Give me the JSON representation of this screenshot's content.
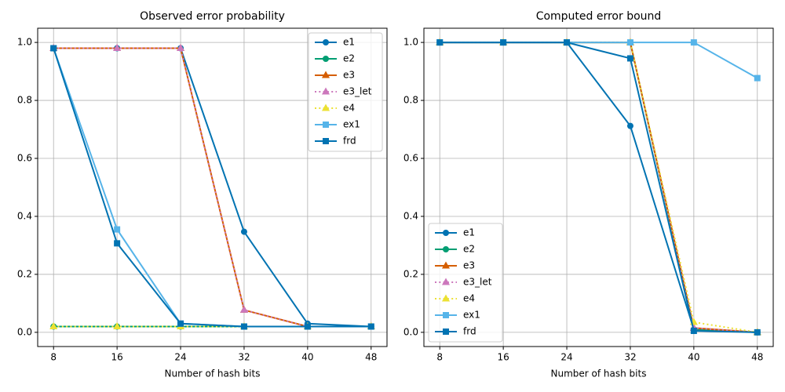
{
  "chart_data": [
    {
      "type": "line",
      "title": "Observed error probability",
      "x_label": "Number of hash bits",
      "x": [
        8,
        16,
        24,
        32,
        40,
        48
      ],
      "xlim": [
        6,
        50
      ],
      "xticks": [
        8,
        16,
        24,
        32,
        40,
        48
      ],
      "ylim": [
        -0.049,
        1.049
      ],
      "yticks": [
        {
          "value": 0,
          "label": "0.0"
        },
        {
          "value": 0.2,
          "label": "0.2"
        },
        {
          "value": 0.4,
          "label": "0.4"
        },
        {
          "value": 0.6,
          "label": "0.6"
        },
        {
          "value": 0.8,
          "label": "0.8"
        },
        {
          "value": 1.0,
          "label": "1.0"
        }
      ],
      "grid": true,
      "legend": "upper-right",
      "series": [
        {
          "name": "e1",
          "color": "#0173b2",
          "marker": "circle",
          "linestyle": "solid",
          "values": [
            0.98,
            0.98,
            0.98,
            0.347,
            0.03,
            0.02
          ]
        },
        {
          "name": "e2",
          "color": "#029e73",
          "marker": "circle",
          "linestyle": "solid",
          "values": [
            0.02,
            0.02,
            0.02,
            0.02,
            0.02,
            0.02
          ]
        },
        {
          "name": "e3",
          "color": "#d55e00",
          "marker": "triangle",
          "linestyle": "solid",
          "values": [
            0.98,
            0.98,
            0.98,
            0.077,
            0.02,
            0.02
          ]
        },
        {
          "name": "e3_let",
          "color": "#cc78bc",
          "marker": "triangle",
          "linestyle": "dotted",
          "values": [
            0.98,
            0.98,
            0.98,
            0.077,
            0.02,
            0.02
          ]
        },
        {
          "name": "e4",
          "color": "#ece133",
          "marker": "triangle",
          "linestyle": "dotted",
          "values": [
            0.02,
            0.02,
            0.02,
            0.02,
            0.02,
            0.02
          ]
        },
        {
          "name": "ex1",
          "color": "#56b4e9",
          "marker": "square",
          "linestyle": "solid",
          "values": [
            0.98,
            0.355,
            0.03,
            0.02,
            0.02,
            0.02
          ]
        },
        {
          "name": "frd",
          "color": "#0173b2",
          "marker": "square",
          "linestyle": "solid",
          "values": [
            0.98,
            0.307,
            0.03,
            0.02,
            0.02,
            0.02
          ]
        }
      ]
    },
    {
      "type": "line",
      "title": "Computed error bound",
      "x_label": "Number of hash bits",
      "x": [
        8,
        16,
        24,
        32,
        40,
        48
      ],
      "xlim": [
        6,
        50
      ],
      "xticks": [
        8,
        16,
        24,
        32,
        40,
        48
      ],
      "ylim": [
        -0.049,
        1.049
      ],
      "yticks": [
        {
          "value": 0,
          "label": "0.0"
        },
        {
          "value": 0.2,
          "label": "0.2"
        },
        {
          "value": 0.4,
          "label": "0.4"
        },
        {
          "value": 0.6,
          "label": "0.6"
        },
        {
          "value": 0.8,
          "label": "0.8"
        },
        {
          "value": 1.0,
          "label": "1.0"
        }
      ],
      "grid": true,
      "legend": "lower-left",
      "series": [
        {
          "name": "e1",
          "color": "#0173b2",
          "marker": "circle",
          "linestyle": "solid",
          "values": [
            1.0,
            1.0,
            1.0,
            0.712,
            0.01,
            0.0
          ]
        },
        {
          "name": "e2",
          "color": "#029e73",
          "marker": "circle",
          "linestyle": "solid",
          "values": [
            1.0,
            1.0,
            1.0,
            1.0,
            0.01,
            0.0
          ]
        },
        {
          "name": "e3",
          "color": "#d55e00",
          "marker": "triangle",
          "linestyle": "solid",
          "values": [
            1.0,
            1.0,
            1.0,
            1.0,
            0.015,
            0.0
          ]
        },
        {
          "name": "e3_let",
          "color": "#cc78bc",
          "marker": "triangle",
          "linestyle": "dotted",
          "values": [
            1.0,
            1.0,
            1.0,
            1.0,
            0.015,
            0.0
          ]
        },
        {
          "name": "e4",
          "color": "#ece133",
          "marker": "triangle",
          "linestyle": "dotted",
          "values": [
            1.0,
            1.0,
            1.0,
            1.0,
            0.035,
            0.0
          ]
        },
        {
          "name": "ex1",
          "color": "#56b4e9",
          "marker": "square",
          "linestyle": "solid",
          "values": [
            1.0,
            1.0,
            1.0,
            1.0,
            1.0,
            0.877
          ]
        },
        {
          "name": "frd",
          "color": "#0173b2",
          "marker": "square",
          "linestyle": "solid",
          "values": [
            1.0,
            1.0,
            1.0,
            0.945,
            0.005,
            0.0
          ]
        }
      ]
    }
  ]
}
